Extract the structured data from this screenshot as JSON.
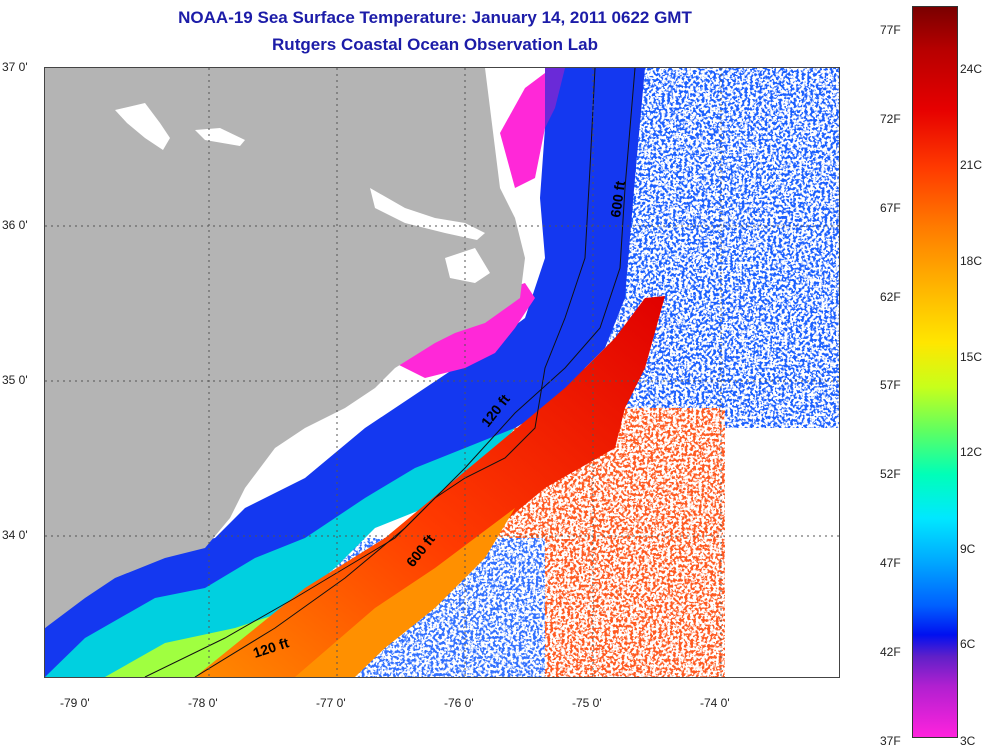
{
  "header": {
    "title": "NOAA-19 Sea Surface Temperature:  January 14, 2011 0622 GMT",
    "subtitle": "Rutgers Coastal Ocean Observation Lab"
  },
  "map": {
    "lat_labels": [
      "37 0'",
      "36 0'",
      "35 0'",
      "34 0'"
    ],
    "lon_labels": [
      "-79 0'",
      "-78 0'",
      "-77 0'",
      "-76 0'",
      "-75 0'",
      "-74 0'"
    ],
    "contour_labels": [
      "600 ft",
      "120 ft",
      "600 ft",
      "120 ft"
    ],
    "land_color": "#b4b4b4"
  },
  "colorbar": {
    "fahrenheit_labels": [
      "77F",
      "72F",
      "67F",
      "62F",
      "57F",
      "52F",
      "47F",
      "42F",
      "37F"
    ],
    "celsius_labels": [
      "24C",
      "21C",
      "18C",
      "15C",
      "12C",
      "9C",
      "6C",
      "3C"
    ]
  }
}
